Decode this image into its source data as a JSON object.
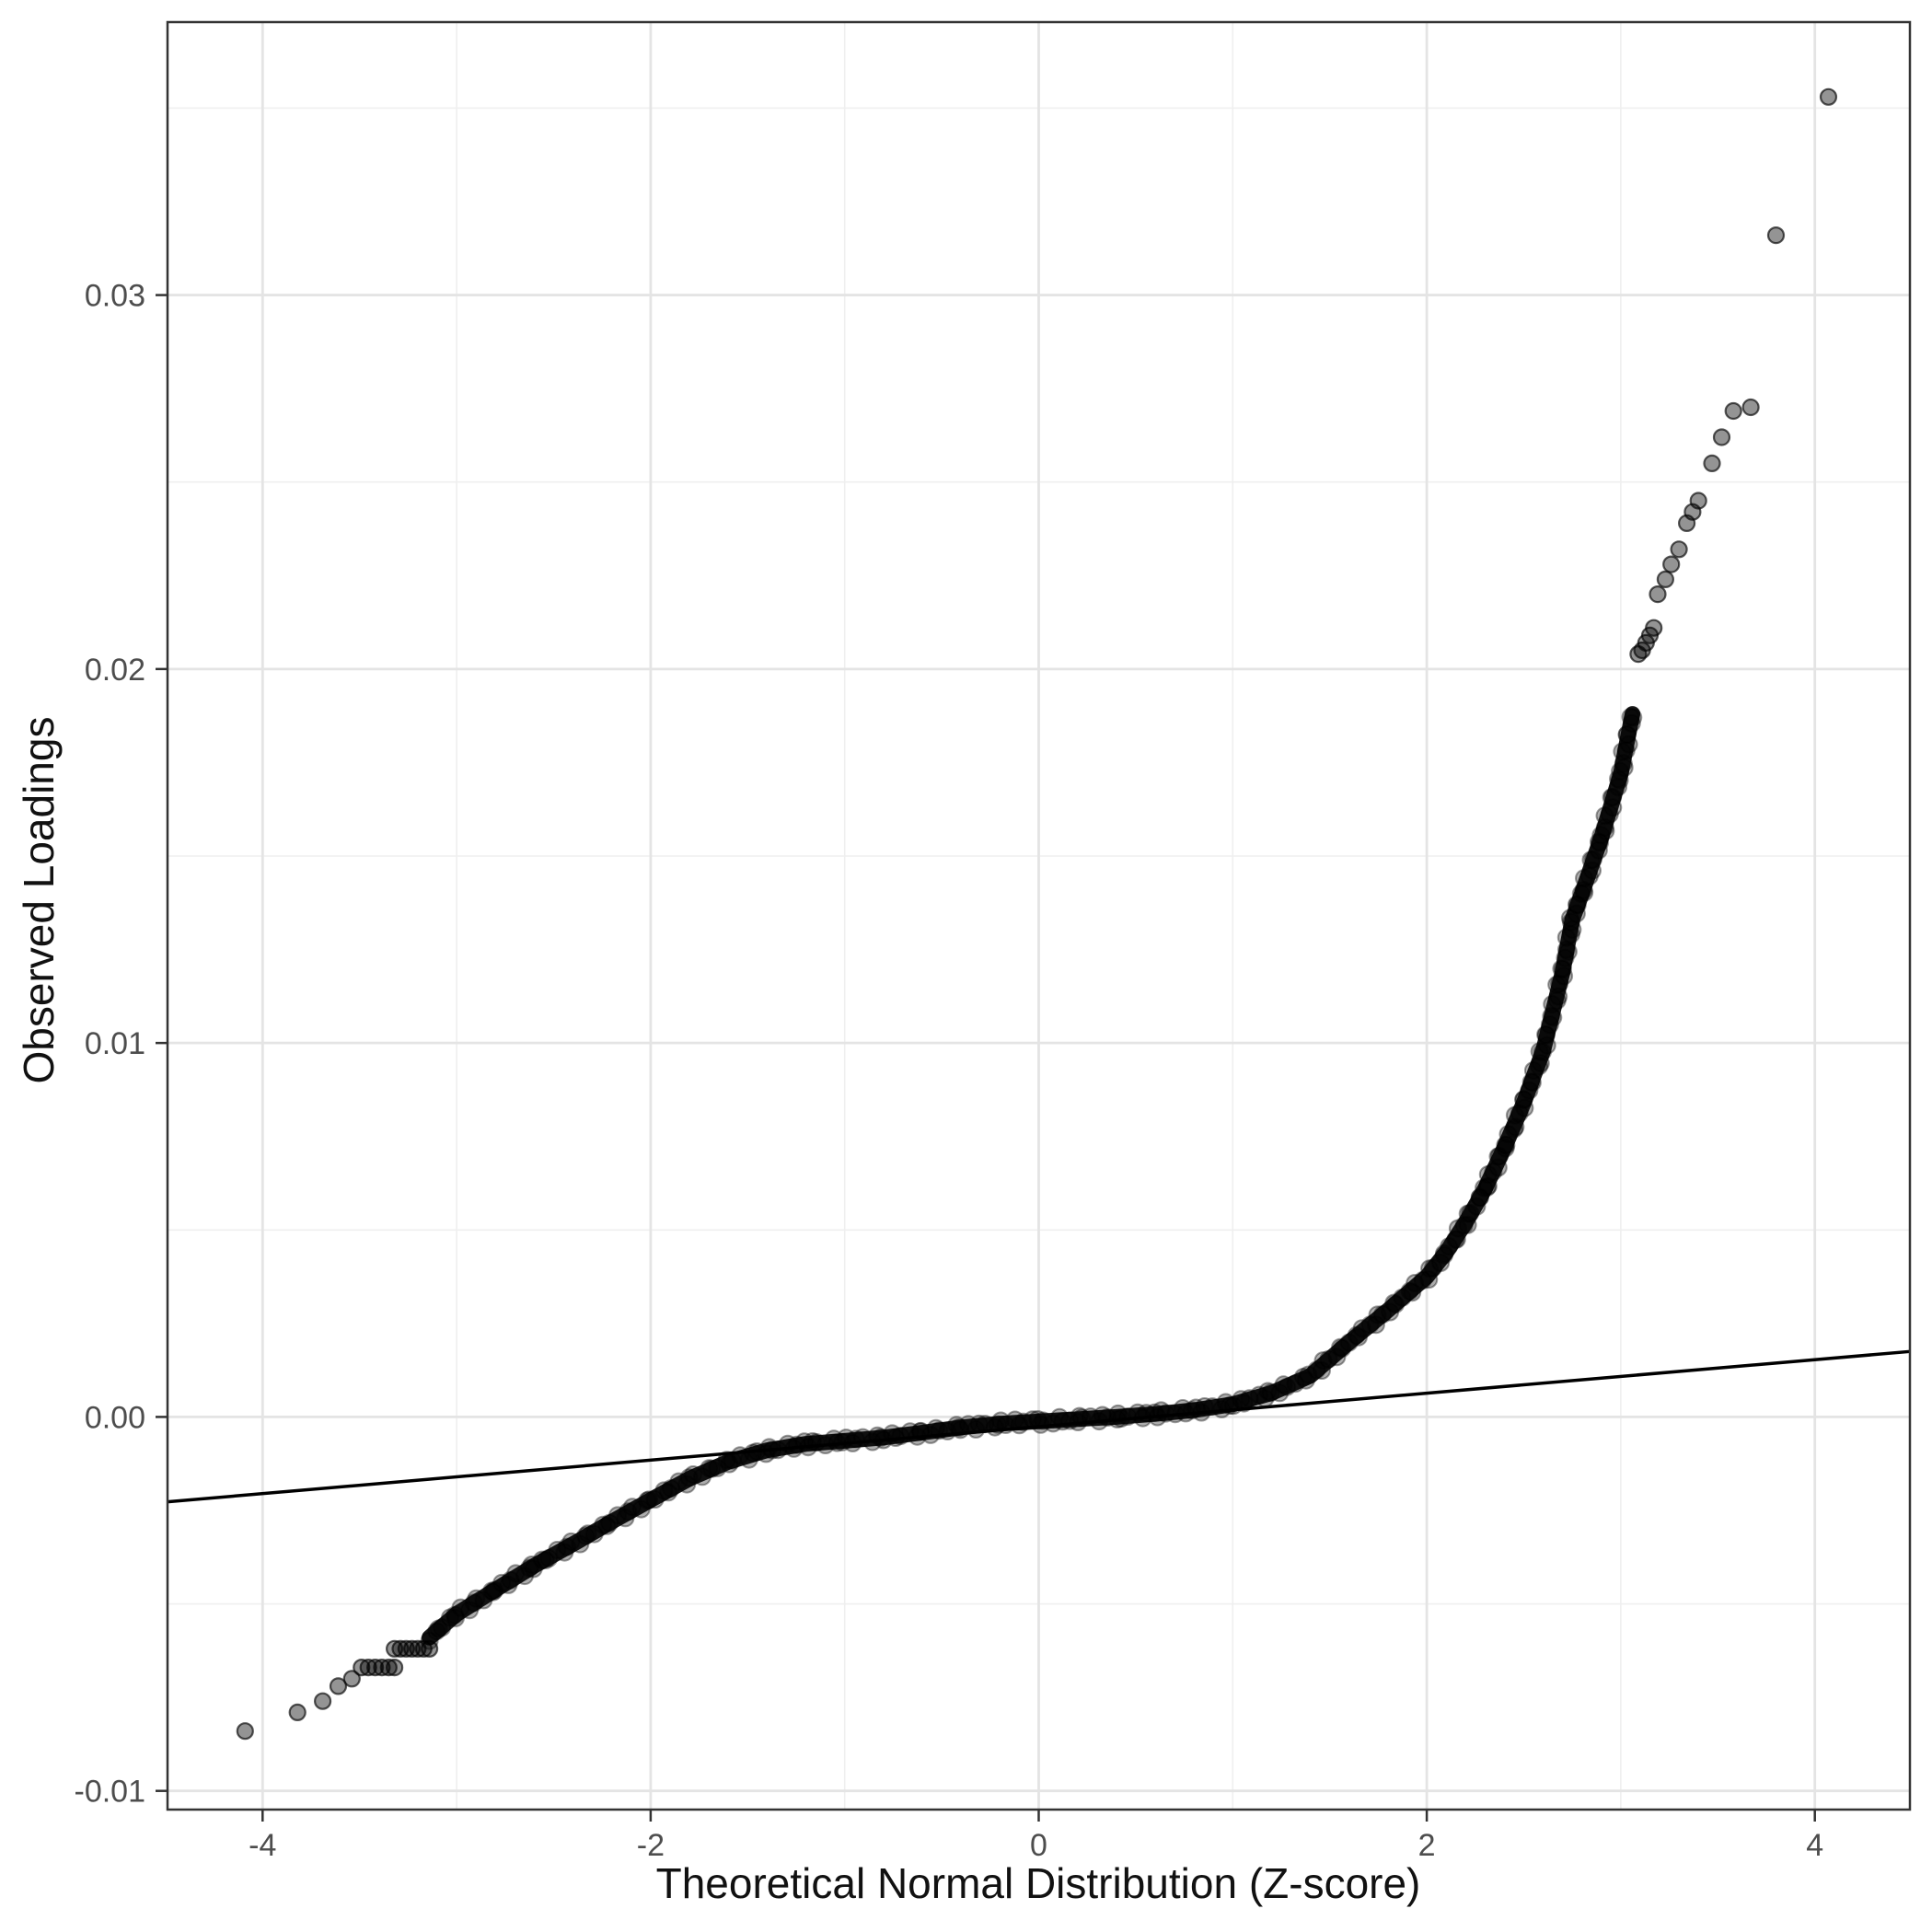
{
  "chart_data": {
    "type": "scatter",
    "title": "",
    "xlabel": "Theoretical Normal Distribution (Z-score)",
    "ylabel": "Observed Loadings",
    "xlim": [
      -4.49,
      4.49
    ],
    "ylim": [
      -0.0105,
      0.0373
    ],
    "x_ticks": [
      -4,
      -2,
      0,
      2,
      4
    ],
    "x_tick_labels": [
      "-4",
      "-2",
      "0",
      "2",
      "4"
    ],
    "y_ticks": [
      0.03,
      0.02,
      0.01,
      0,
      -0.01
    ],
    "y_tick_labels": [
      "0.03",
      "0.02",
      "0.01",
      "0.00",
      "-0.01"
    ],
    "grid": {
      "minor_x": [
        -3,
        -1,
        1,
        3
      ],
      "minor_y": [
        0.035,
        0.025,
        0.015,
        0.005,
        -0.005
      ],
      "major_color": "#e4e4e4",
      "minor_color": "#efefef"
    },
    "reference_line": {
      "type": "qq-reference-line",
      "slope": 0.000447,
      "intercept": -0.00026,
      "x_start": -4.49,
      "x_end": 4.49,
      "y_start": -0.00227,
      "y_end": 0.00175,
      "color": "#000000"
    },
    "legend": "none",
    "series": [
      {
        "name": "dense-band",
        "description": "Thousands of overlapping semi-transparent black Q-Q points forming a thick S-shaped band; centerline sampled below as [z, observed_loading]",
        "centerline": [
          [
            -3.14,
            -0.0059
          ],
          [
            -3.0,
            -0.00527
          ],
          [
            -2.8,
            -0.00462
          ],
          [
            -2.6,
            -0.00398
          ],
          [
            -2.4,
            -0.0034
          ],
          [
            -2.2,
            -0.0028
          ],
          [
            -2.0,
            -0.00222
          ],
          [
            -1.8,
            -0.00165
          ],
          [
            -1.6,
            -0.0012
          ],
          [
            -1.4,
            -0.00089
          ],
          [
            -1.2,
            -0.00072
          ],
          [
            -1.0,
            -0.00064
          ],
          [
            -0.8,
            -0.00055
          ],
          [
            -0.6,
            -0.00042
          ],
          [
            -0.4,
            -0.00028
          ],
          [
            -0.2,
            -0.00018
          ],
          [
            0.0,
            -0.00012
          ],
          [
            0.2,
            -6e-05
          ],
          [
            0.4,
            0.0
          ],
          [
            0.6,
            8e-05
          ],
          [
            0.8,
            0.00018
          ],
          [
            1.0,
            0.00034
          ],
          [
            1.2,
            0.00064
          ],
          [
            1.4,
            0.0011
          ],
          [
            1.6,
            0.002
          ],
          [
            1.8,
            0.00285
          ],
          [
            2.0,
            0.00375
          ],
          [
            2.1,
            0.0044
          ],
          [
            2.2,
            0.0052
          ],
          [
            2.3,
            0.0061
          ],
          [
            2.4,
            0.0072
          ],
          [
            2.5,
            0.0084
          ],
          [
            2.6,
            0.0098
          ],
          [
            2.7,
            0.0119
          ],
          [
            2.75,
            0.0133
          ],
          [
            2.8,
            0.014
          ],
          [
            2.9,
            0.0155
          ],
          [
            3.0,
            0.0172
          ],
          [
            3.03,
            0.018
          ],
          [
            3.06,
            0.0188
          ]
        ]
      },
      {
        "name": "lower-tail-points",
        "points": [
          [
            -4.09,
            -0.0084
          ],
          [
            -3.82,
            -0.0079
          ],
          [
            -3.69,
            -0.0076
          ],
          [
            -3.61,
            -0.0072
          ],
          [
            -3.54,
            -0.007
          ],
          [
            -3.49,
            -0.0067
          ],
          [
            -3.455,
            -0.0067
          ],
          [
            -3.42,
            -0.0067
          ],
          [
            -3.385,
            -0.0067
          ],
          [
            -3.35,
            -0.0067
          ],
          [
            -3.32,
            -0.0067
          ],
          [
            -3.32,
            -0.0062
          ],
          [
            -3.29,
            -0.0062
          ],
          [
            -3.26,
            -0.0062
          ],
          [
            -3.23,
            -0.0062
          ],
          [
            -3.2,
            -0.0062
          ],
          [
            -3.17,
            -0.0062
          ],
          [
            -3.14,
            -0.0062
          ]
        ]
      },
      {
        "name": "upper-tail-points",
        "points": [
          [
            3.09,
            0.0204
          ],
          [
            3.11,
            0.0205
          ],
          [
            3.13,
            0.0207
          ],
          [
            3.15,
            0.0209
          ],
          [
            3.17,
            0.0211
          ],
          [
            3.19,
            0.022
          ],
          [
            3.23,
            0.0224
          ],
          [
            3.26,
            0.0228
          ],
          [
            3.3,
            0.0232
          ],
          [
            3.34,
            0.0239
          ],
          [
            3.37,
            0.0242
          ],
          [
            3.4,
            0.0245
          ],
          [
            3.47,
            0.0255
          ],
          [
            3.52,
            0.0262
          ],
          [
            3.58,
            0.0269
          ],
          [
            3.67,
            0.027
          ],
          [
            3.8,
            0.0316
          ],
          [
            4.07,
            0.0353
          ]
        ]
      }
    ],
    "point_style": {
      "color": "#000000",
      "alpha": 0.45,
      "radius_px": 8.5
    }
  },
  "axes_style": {
    "tick_label_color": "#4d4d4d",
    "axis_title_color": "#111111",
    "panel_border_color": "#333333",
    "tick_color": "#333333",
    "background": "#ffffff"
  }
}
